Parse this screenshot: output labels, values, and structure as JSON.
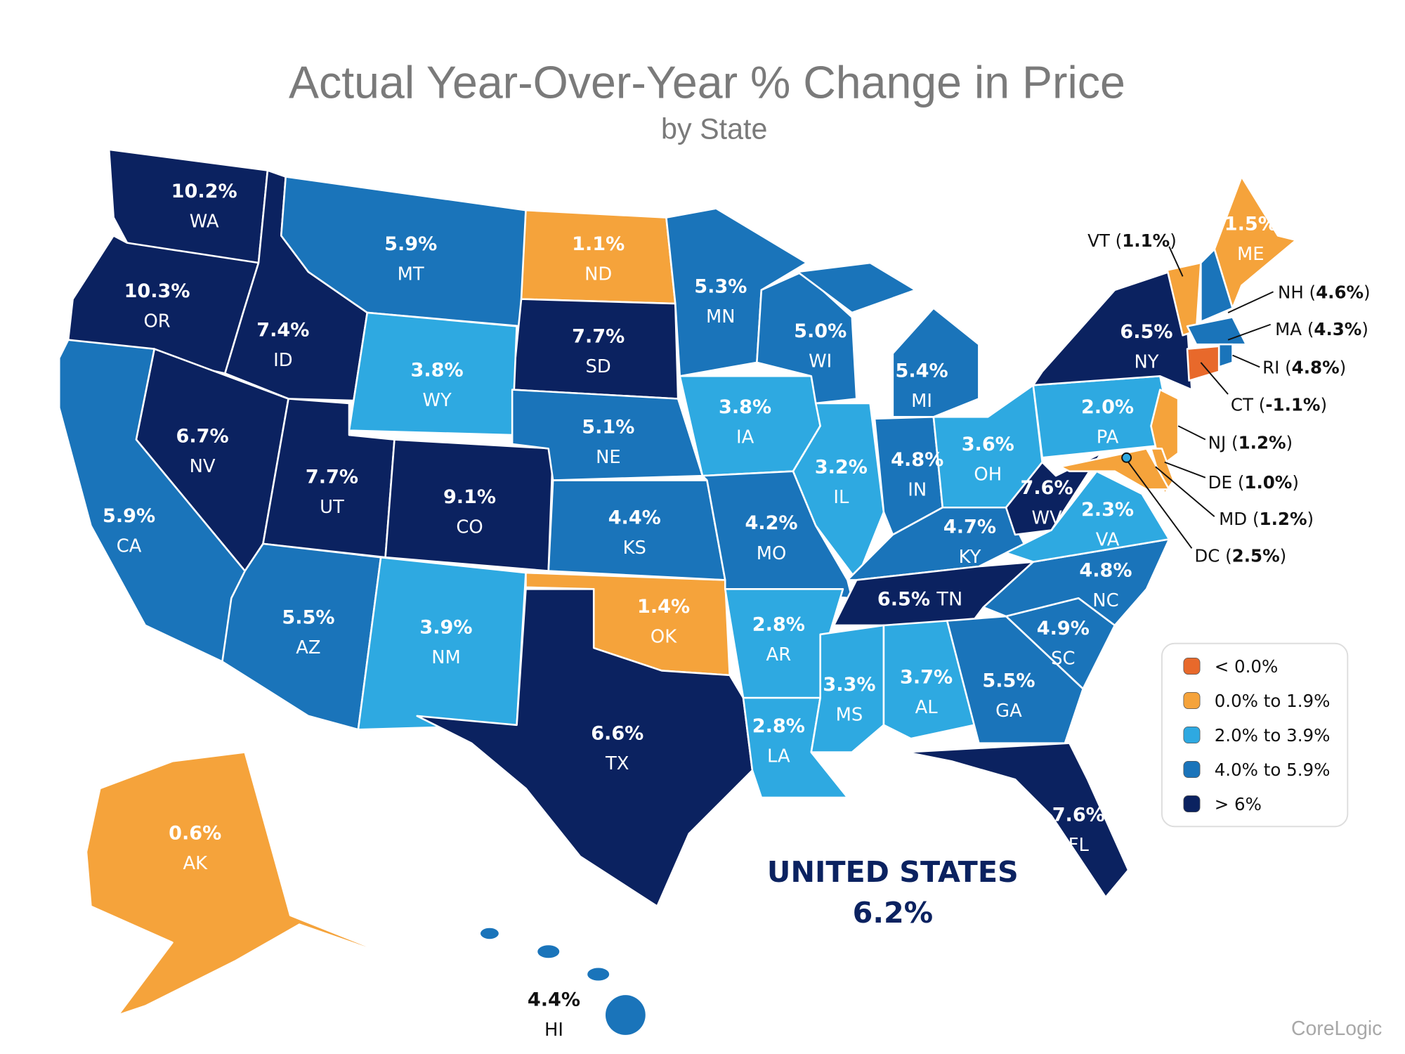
{
  "title": "Actual Year-Over-Year % Change in Price",
  "subtitle": "by State",
  "source": "CoreLogic",
  "national": {
    "label": "UNITED STATES",
    "value": "6.2%"
  },
  "colors": {
    "lt0": "#e8692b",
    "0to1.9": "#f5a33b",
    "2to3.9": "#2ea9e1",
    "4to5.9": "#1a74ba",
    "gt6": "#0b2260"
  },
  "legend": [
    {
      "bin": "lt0",
      "label": "< 0.0%"
    },
    {
      "bin": "0to1.9",
      "label": "0.0% to 1.9%"
    },
    {
      "bin": "2to3.9",
      "label": "2.0% to 3.9%"
    },
    {
      "bin": "4to5.9",
      "label": "4.0% to 5.9%"
    },
    {
      "bin": "gt6",
      "label": "> 6%"
    }
  ],
  "states": [
    {
      "abbr": "WA",
      "value": "10.2%",
      "bin": "gt6"
    },
    {
      "abbr": "OR",
      "value": "10.3%",
      "bin": "gt6"
    },
    {
      "abbr": "ID",
      "value": "7.4%",
      "bin": "gt6"
    },
    {
      "abbr": "MT",
      "value": "5.9%",
      "bin": "4to5.9"
    },
    {
      "abbr": "ND",
      "value": "1.1%",
      "bin": "0to1.9"
    },
    {
      "abbr": "SD",
      "value": "7.7%",
      "bin": "gt6"
    },
    {
      "abbr": "MN",
      "value": "5.3%",
      "bin": "4to5.9"
    },
    {
      "abbr": "WY",
      "value": "3.8%",
      "bin": "2to3.9"
    },
    {
      "abbr": "NV",
      "value": "6.7%",
      "bin": "gt6"
    },
    {
      "abbr": "UT",
      "value": "7.7%",
      "bin": "gt6"
    },
    {
      "abbr": "CO",
      "value": "9.1%",
      "bin": "gt6"
    },
    {
      "abbr": "CA",
      "value": "5.9%",
      "bin": "4to5.9"
    },
    {
      "abbr": "AZ",
      "value": "5.5%",
      "bin": "4to5.9"
    },
    {
      "abbr": "NM",
      "value": "3.9%",
      "bin": "2to3.9"
    },
    {
      "abbr": "NE",
      "value": "5.1%",
      "bin": "4to5.9"
    },
    {
      "abbr": "KS",
      "value": "4.4%",
      "bin": "4to5.9"
    },
    {
      "abbr": "OK",
      "value": "1.4%",
      "bin": "0to1.9"
    },
    {
      "abbr": "TX",
      "value": "6.6%",
      "bin": "gt6"
    },
    {
      "abbr": "IA",
      "value": "3.8%",
      "bin": "2to3.9"
    },
    {
      "abbr": "MO",
      "value": "4.2%",
      "bin": "4to5.9"
    },
    {
      "abbr": "AR",
      "value": "2.8%",
      "bin": "2to3.9"
    },
    {
      "abbr": "LA",
      "value": "2.8%",
      "bin": "2to3.9"
    },
    {
      "abbr": "WI",
      "value": "5.0%",
      "bin": "4to5.9"
    },
    {
      "abbr": "IL",
      "value": "3.2%",
      "bin": "2to3.9"
    },
    {
      "abbr": "MI",
      "value": "5.4%",
      "bin": "4to5.9"
    },
    {
      "abbr": "IN",
      "value": "4.8%",
      "bin": "4to5.9"
    },
    {
      "abbr": "OH",
      "value": "3.6%",
      "bin": "2to3.9"
    },
    {
      "abbr": "KY",
      "value": "4.7%",
      "bin": "4to5.9"
    },
    {
      "abbr": "TN",
      "value": "6.5%",
      "bin": "gt6"
    },
    {
      "abbr": "MS",
      "value": "3.3%",
      "bin": "2to3.9"
    },
    {
      "abbr": "AL",
      "value": "3.7%",
      "bin": "2to3.9"
    },
    {
      "abbr": "GA",
      "value": "5.5%",
      "bin": "4to5.9"
    },
    {
      "abbr": "FL",
      "value": "7.6%",
      "bin": "gt6"
    },
    {
      "abbr": "SC",
      "value": "4.9%",
      "bin": "4to5.9"
    },
    {
      "abbr": "NC",
      "value": "4.8%",
      "bin": "4to5.9"
    },
    {
      "abbr": "VA",
      "value": "2.3%",
      "bin": "2to3.9"
    },
    {
      "abbr": "WV",
      "value": "7.6%",
      "bin": "gt6"
    },
    {
      "abbr": "PA",
      "value": "2.0%",
      "bin": "2to3.9"
    },
    {
      "abbr": "NY",
      "value": "6.5%",
      "bin": "gt6"
    },
    {
      "abbr": "ME",
      "value": "1.5%",
      "bin": "0to1.9"
    },
    {
      "abbr": "VT",
      "value": "1.1%",
      "bin": "0to1.9"
    },
    {
      "abbr": "NH",
      "value": "4.6%",
      "bin": "4to5.9"
    },
    {
      "abbr": "MA",
      "value": "4.3%",
      "bin": "4to5.9"
    },
    {
      "abbr": "RI",
      "value": "4.8%",
      "bin": "4to5.9"
    },
    {
      "abbr": "CT",
      "value": "-1.1%",
      "bin": "lt0"
    },
    {
      "abbr": "NJ",
      "value": "1.2%",
      "bin": "0to1.9"
    },
    {
      "abbr": "DE",
      "value": "1.0%",
      "bin": "0to1.9"
    },
    {
      "abbr": "MD",
      "value": "1.2%",
      "bin": "0to1.9"
    },
    {
      "abbr": "DC",
      "value": "2.5%",
      "bin": "2to3.9"
    },
    {
      "abbr": "AK",
      "value": "0.6%",
      "bin": "0to1.9"
    },
    {
      "abbr": "HI",
      "value": "4.4%",
      "bin": "4to5.9"
    }
  ]
}
